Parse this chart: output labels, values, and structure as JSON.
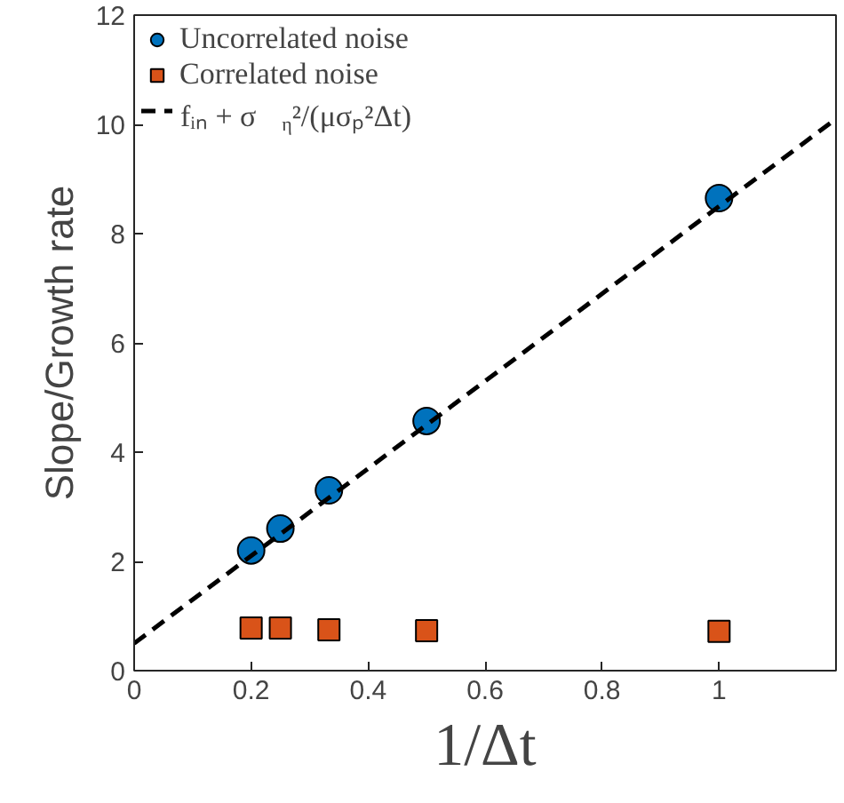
{
  "chart_data": {
    "type": "scatter",
    "xlabel": "1/Δt",
    "ylabel": "Slope/Growth rate",
    "x": [
      0.2,
      0.25,
      0.333,
      0.5,
      1
    ],
    "series": [
      {
        "name": "Uncorrelated noise",
        "color": "#0072bd",
        "marker": "circle",
        "values": [
          2.2,
          2.6,
          3.3,
          4.57,
          8.65
        ]
      },
      {
        "name": "Correlated noise",
        "color": "#d95319",
        "marker": "square",
        "values": [
          0.78,
          0.78,
          0.75,
          0.73,
          0.72
        ]
      },
      {
        "name": "fᵢₙ + σ$_{η}$²/(μσₚ²Δt)",
        "type": "line",
        "color": "#000000",
        "line_style": "dashed",
        "x": [
          0,
          1.2
        ],
        "values": [
          0.5,
          10.1
        ]
      }
    ],
    "xlim": [
      0,
      1.2
    ],
    "ylim": [
      0,
      12
    ],
    "xticks": [
      0,
      0.2,
      0.4,
      0.6,
      0.8,
      1
    ],
    "yticks": [
      0,
      2,
      4,
      6,
      8,
      10,
      12
    ],
    "grid": false,
    "legend": "top left"
  }
}
